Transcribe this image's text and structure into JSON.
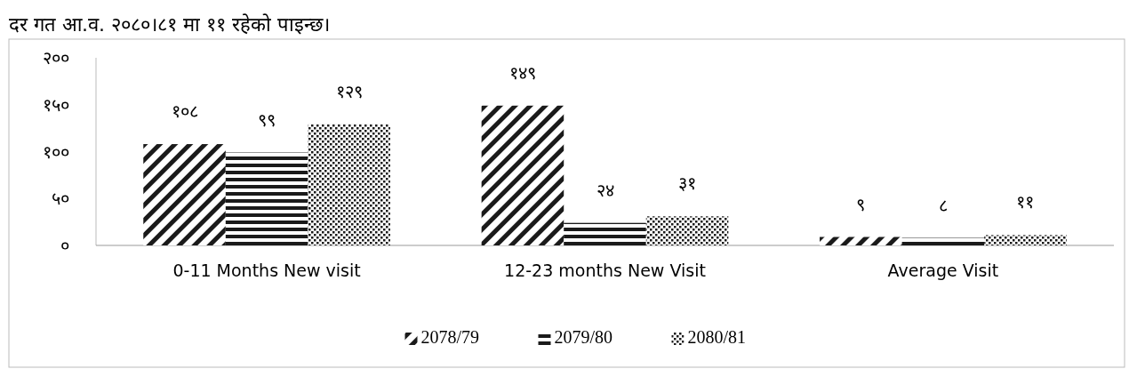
{
  "chart_data": {
    "type": "bar",
    "annotations": [
      "दर गत आ.व. २०८०।८१ मा ११ रहेको पाइन्छ।"
    ],
    "categories": [
      "0-11 Months  New visit",
      "12-23 months New Visit",
      "Average Visit"
    ],
    "series": [
      {
        "name": "2078/79",
        "color": "#1a1a1a",
        "values": [
          108,
          149,
          9
        ],
        "value_labels": [
          "१०८",
          "१४९",
          "९"
        ]
      },
      {
        "name": "2079/80",
        "color": "#1a1a1a",
        "values": [
          99,
          24,
          8
        ],
        "value_labels": [
          "९९",
          "२४",
          "८"
        ]
      },
      {
        "name": "2080/81",
        "color": "#1a1a1a",
        "values": [
          129,
          31,
          11
        ],
        "value_labels": [
          "१२९",
          "३१",
          "११"
        ]
      }
    ],
    "ylim": [
      0,
      200
    ],
    "yticks": [
      {
        "value": 0,
        "label": "०"
      },
      {
        "value": 50,
        "label": "५०"
      },
      {
        "value": 100,
        "label": "१००"
      },
      {
        "value": 150,
        "label": "१५०"
      },
      {
        "value": 200,
        "label": "२००"
      }
    ],
    "grid": false,
    "legend": "bottom"
  }
}
